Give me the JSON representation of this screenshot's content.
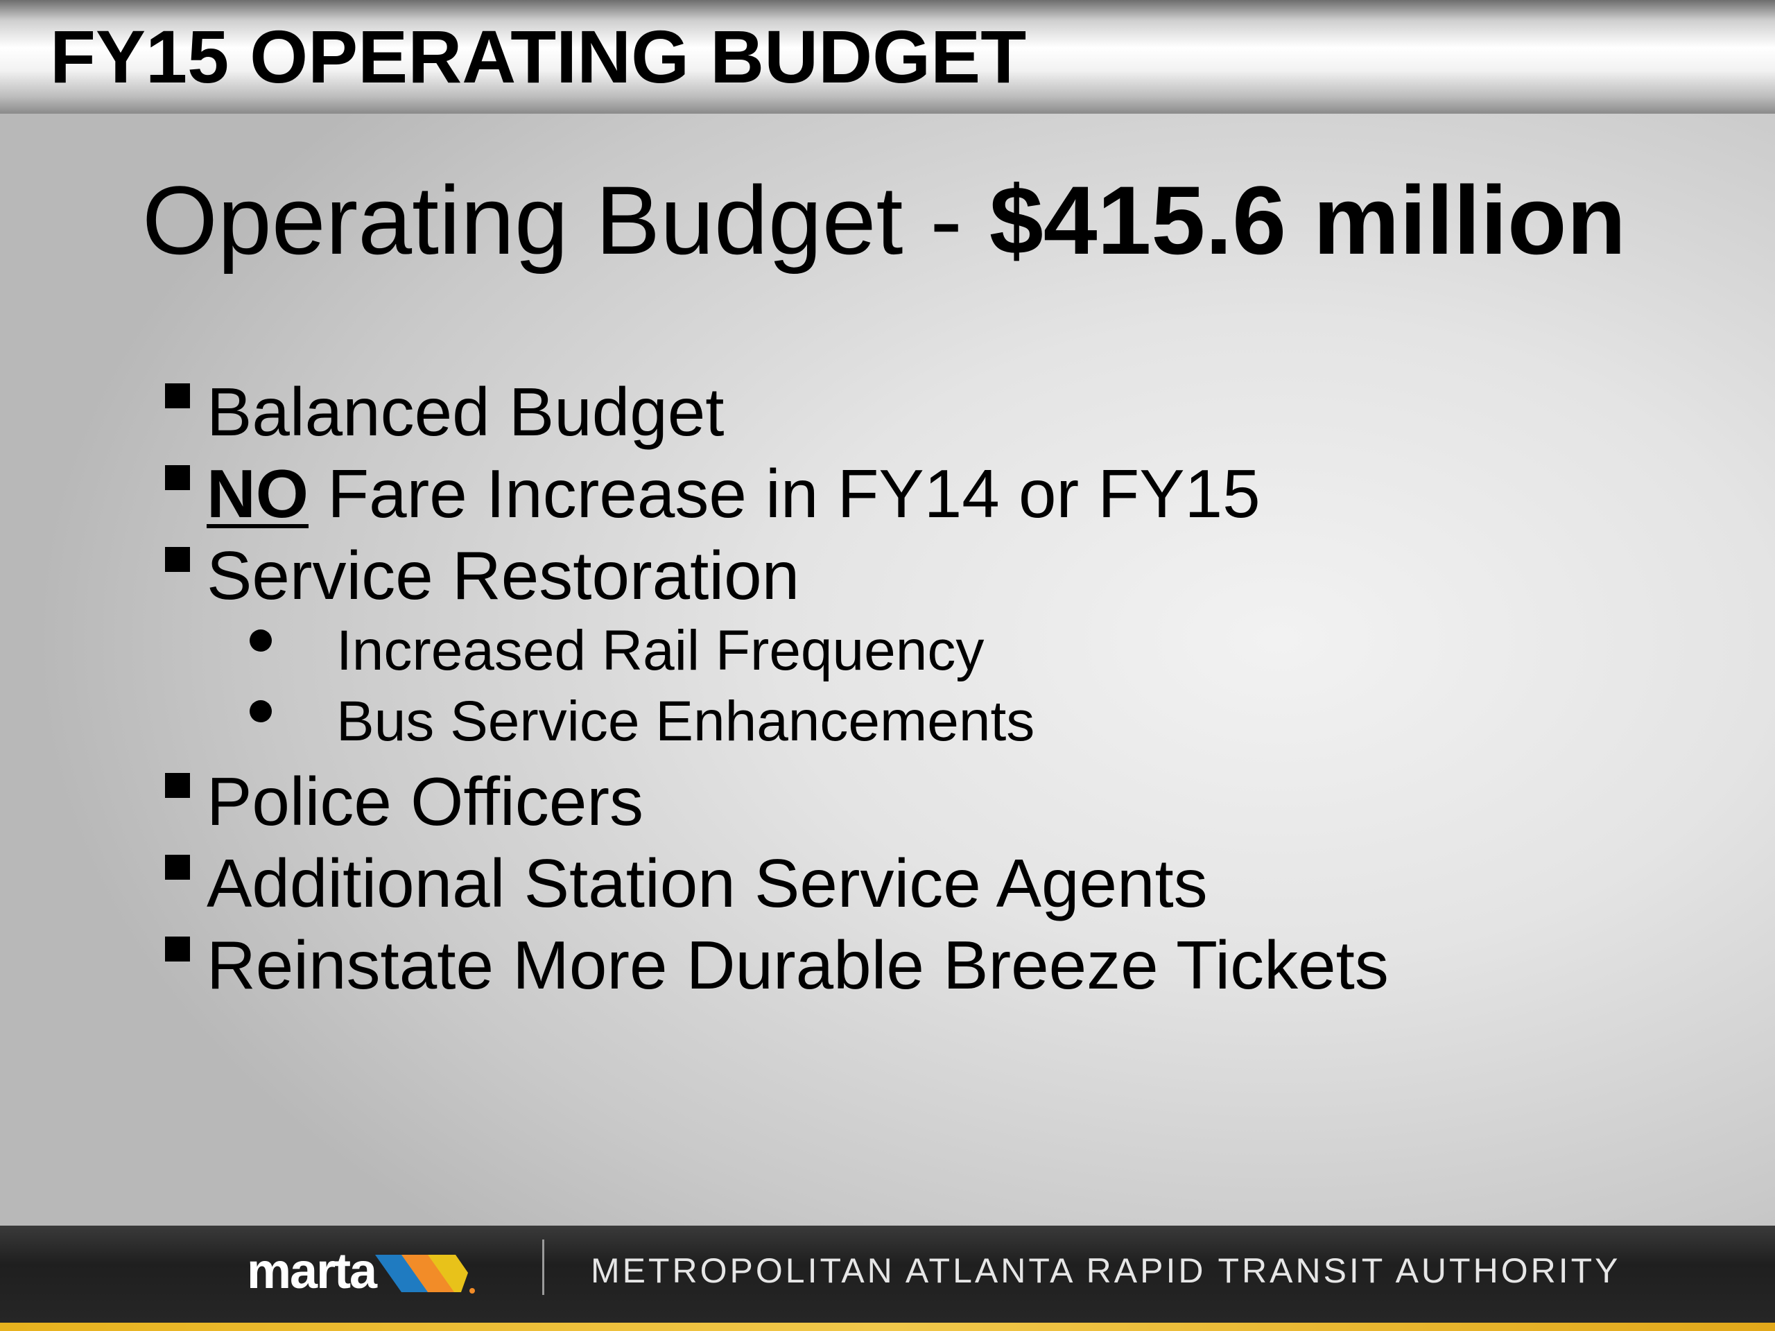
{
  "header": {
    "title": "FY15 OPERATING BUDGET"
  },
  "slide": {
    "title_prefix": "Operating Budget - ",
    "title_amount": "$415.6 million",
    "bullets": [
      {
        "label": "Balanced Budget"
      },
      {
        "emphasis": "NO",
        "label": " Fare Increase in FY14 or FY15"
      },
      {
        "label": "Service Restoration"
      },
      {
        "label": "Police Officers"
      },
      {
        "label": "Additional Station Service Agents"
      },
      {
        "label": "Reinstate More Durable Breeze Tickets"
      }
    ],
    "sub_bullets": [
      {
        "label": "Increased Rail Frequency"
      },
      {
        "label": "Bus Service Enhancements"
      }
    ]
  },
  "footer": {
    "logo_text": "marta",
    "logo_colors": [
      "#1f7bc1",
      "#f28c28",
      "#e8c21a"
    ],
    "organization": "METROPOLITAN ATLANTA RAPID TRANSIT AUTHORITY"
  }
}
